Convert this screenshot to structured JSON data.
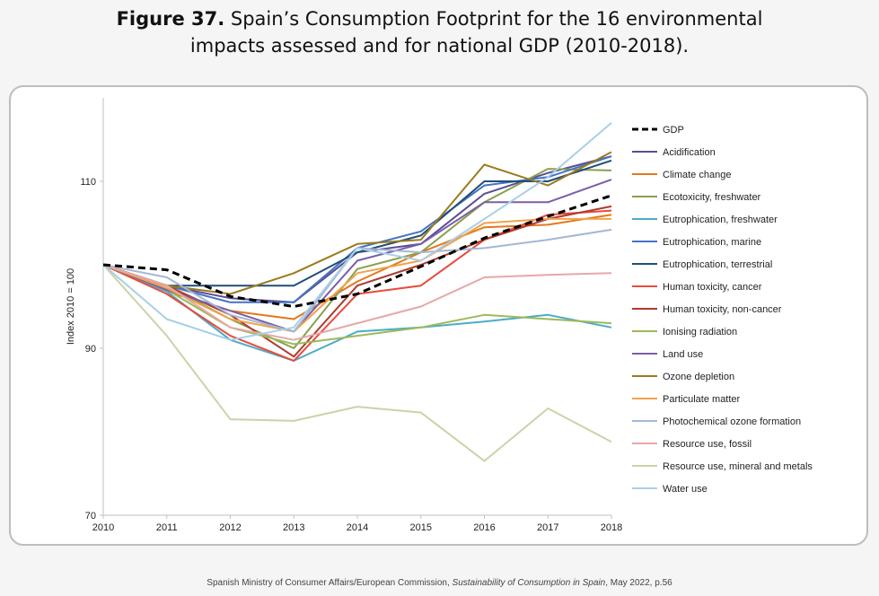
{
  "figure": {
    "label": "Figure 37.",
    "title_line1": "Spain’s Consumption Footprint for the 16 environmental",
    "title_line2": "impacts assessed and for national GDP (2010-2018)."
  },
  "source": {
    "prefix": "Spanish Ministry of Consumer Affairs/European Commission, ",
    "title": "Sustainability of Consumption in Spain",
    "suffix": ", May 2022, p.56"
  },
  "chart_data": {
    "type": "line",
    "title": "",
    "xlabel": "",
    "ylabel": "Index 2010 = 100",
    "x": [
      2010,
      2011,
      2012,
      2013,
      2014,
      2015,
      2016,
      2017,
      2018
    ],
    "ylim": [
      70,
      120
    ],
    "yticks": [
      70,
      90,
      110
    ],
    "grid": false,
    "legend_position": "right",
    "series": [
      {
        "name": "GDP",
        "color": "#000000",
        "dashed": true,
        "values": [
          100,
          99.4,
          96.2,
          95.0,
          96.5,
          99.8,
          103.2,
          105.8,
          108.3
        ]
      },
      {
        "name": "Acidification",
        "color": "#5b4d92",
        "values": [
          100,
          97.5,
          96.0,
          95.5,
          101.5,
          102.5,
          108.5,
          111.0,
          113.0
        ]
      },
      {
        "name": "Climate change",
        "color": "#e3781c",
        "values": [
          100,
          96.8,
          94.5,
          93.5,
          98.0,
          101.5,
          104.5,
          104.8,
          106.0
        ]
      },
      {
        "name": "Ecotoxicity, freshwater",
        "color": "#88a04d",
        "values": [
          100,
          97.5,
          93.5,
          90.0,
          99.5,
          101.5,
          107.5,
          111.5,
          111.3
        ]
      },
      {
        "name": "Eutrophication, freshwater",
        "color": "#4bacc6",
        "values": [
          100,
          96.8,
          91.0,
          88.5,
          92.0,
          92.5,
          93.2,
          94.0,
          92.5
        ]
      },
      {
        "name": "Eutrophication, marine",
        "color": "#4472c4",
        "values": [
          100,
          97.5,
          95.5,
          95.5,
          102.0,
          104.0,
          109.5,
          110.5,
          113.0
        ]
      },
      {
        "name": "Eutrophication, terrestrial",
        "color": "#1f4e79",
        "values": [
          100,
          97.5,
          97.5,
          97.5,
          101.5,
          103.5,
          110.0,
          110.0,
          112.5
        ]
      },
      {
        "name": "Human toxicity, cancer",
        "color": "#e84b3c",
        "values": [
          100,
          96.5,
          91.5,
          88.5,
          96.5,
          97.5,
          103.0,
          106.0,
          106.5
        ]
      },
      {
        "name": "Human toxicity, non-cancer",
        "color": "#b03a2e",
        "values": [
          100,
          97.5,
          94.0,
          89.0,
          97.5,
          100.0,
          103.0,
          105.5,
          107.0
        ]
      },
      {
        "name": "Ionising radiation",
        "color": "#9bbb59",
        "values": [
          100,
          97.0,
          92.5,
          90.5,
          91.5,
          92.5,
          94.0,
          93.5,
          93.0
        ]
      },
      {
        "name": "Land use",
        "color": "#7b5ea7",
        "values": [
          100,
          97.0,
          94.5,
          92.0,
          100.5,
          102.5,
          107.5,
          107.5,
          110.2
        ]
      },
      {
        "name": "Ozone depletion",
        "color": "#9c7a1e",
        "values": [
          100,
          97.5,
          96.5,
          99.0,
          102.5,
          103.0,
          112.0,
          109.5,
          113.5
        ]
      },
      {
        "name": "Particulate matter",
        "color": "#f2a24a",
        "values": [
          100,
          97.2,
          93.5,
          92.0,
          99.0,
          100.5,
          105.0,
          105.5,
          105.5
        ]
      },
      {
        "name": "Photochemical ozone formation",
        "color": "#a3b7d6",
        "values": [
          100,
          98.5,
          94.0,
          92.0,
          102.0,
          101.5,
          102.0,
          103.0,
          104.2
        ]
      },
      {
        "name": "Resource use, fossil",
        "color": "#e6a8a8",
        "values": [
          100,
          97.5,
          92.5,
          91.0,
          93.0,
          95.0,
          98.5,
          98.8,
          99.0
        ]
      },
      {
        "name": "Resource use, mineral and metals",
        "color": "#c9d4a8",
        "values": [
          100,
          91.5,
          81.5,
          81.3,
          83.0,
          82.3,
          76.5,
          82.8,
          78.8
        ]
      },
      {
        "name": "Water use",
        "color": "#a8d0e6",
        "values": [
          100,
          93.5,
          91.0,
          92.5,
          102.0,
          100.5,
          105.5,
          110.5,
          117.0
        ]
      }
    ]
  }
}
